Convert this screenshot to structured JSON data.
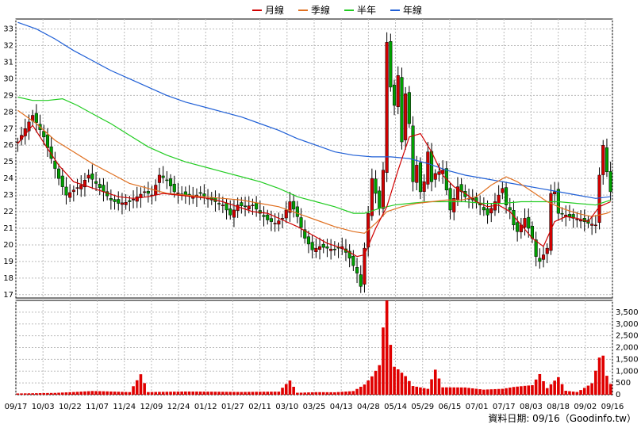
{
  "chart_data": {
    "type": "candlestick",
    "legend": [
      {
        "label": "月線",
        "color": "#d00000"
      },
      {
        "label": "季線",
        "color": "#e07020"
      },
      {
        "label": "半年",
        "color": "#22cc22"
      },
      {
        "label": "年線",
        "color": "#1f5fd6"
      }
    ],
    "price_axis": {
      "ticks": [
        17,
        18,
        19,
        20,
        21,
        22,
        23,
        24,
        25,
        26,
        27,
        28,
        29,
        30,
        31,
        32,
        33
      ],
      "ylim": [
        16.8,
        33.6
      ]
    },
    "volume_axis": {
      "ticks": [
        "0",
        "500",
        "1,000",
        "1,500",
        "2,000",
        "2,500",
        "3,000",
        "3,500"
      ],
      "ylim": [
        0,
        4000
      ]
    },
    "x_ticks": [
      "09/17",
      "10/03",
      "10/22",
      "11/07",
      "11/24",
      "12/09",
      "12/24",
      "01/12",
      "01/27",
      "02/11",
      "03/10",
      "03/25",
      "04/13",
      "04/28",
      "05/14",
      "05/29",
      "06/15",
      "07/01",
      "07/17",
      "08/03",
      "08/18",
      "09/02",
      "09/16"
    ],
    "close_path": [
      [
        0,
        26.2
      ],
      [
        4,
        27.8
      ],
      [
        7,
        26.5
      ],
      [
        9,
        25.2
      ],
      [
        11,
        24
      ],
      [
        13,
        23
      ],
      [
        15,
        23.3
      ],
      [
        17,
        23.6
      ],
      [
        19,
        24.2
      ],
      [
        21,
        23.7
      ],
      [
        23,
        23.2
      ],
      [
        25,
        22.7
      ],
      [
        27,
        22.5
      ],
      [
        30,
        22.6
      ],
      [
        32,
        22.9
      ],
      [
        34,
        23.2
      ],
      [
        36,
        23
      ],
      [
        38,
        24.2
      ],
      [
        40,
        23.9
      ],
      [
        42,
        23.2
      ],
      [
        45,
        23
      ],
      [
        47,
        22.9
      ],
      [
        49,
        23.1
      ],
      [
        51,
        22.8
      ],
      [
        53,
        22.6
      ],
      [
        55,
        22.4
      ],
      [
        57,
        21.8
      ],
      [
        59,
        22.4
      ],
      [
        61,
        22.3
      ],
      [
        63,
        22.4
      ],
      [
        65,
        21.9
      ],
      [
        67,
        21.5
      ],
      [
        69,
        21.3
      ],
      [
        71,
        21.6
      ],
      [
        73,
        22.6
      ],
      [
        75,
        21.7
      ],
      [
        77,
        20.4
      ],
      [
        79,
        19.7
      ],
      [
        81,
        19.9
      ],
      [
        83,
        19.8
      ],
      [
        85,
        19.7
      ],
      [
        87,
        19.9
      ],
      [
        89,
        19.2
      ],
      [
        91,
        18.3
      ],
      [
        92,
        17.5
      ],
      [
        93,
        19.8
      ],
      [
        95,
        24
      ],
      [
        97,
        22.2
      ],
      [
        98,
        24.5
      ],
      [
        99,
        32.2
      ],
      [
        100,
        29.5
      ],
      [
        101,
        28.4
      ],
      [
        102,
        30.2
      ],
      [
        103,
        26.2
      ],
      [
        104,
        29.1
      ],
      [
        105,
        27.3
      ],
      [
        106,
        23.8
      ],
      [
        107,
        24.8
      ],
      [
        108,
        23.2
      ],
      [
        109,
        23.8
      ],
      [
        110,
        25.6
      ],
      [
        111,
        23.8
      ],
      [
        112,
        24.3
      ],
      [
        114,
        24.5
      ],
      [
        116,
        22.1
      ],
      [
        118,
        23.5
      ],
      [
        120,
        22.9
      ],
      [
        122,
        22.7
      ],
      [
        124,
        22.4
      ],
      [
        126,
        21.8
      ],
      [
        128,
        22.6
      ],
      [
        130,
        23.4
      ],
      [
        131,
        22.4
      ],
      [
        132,
        22.1
      ],
      [
        133,
        21.2
      ],
      [
        134,
        20.8
      ],
      [
        136,
        21.6
      ],
      [
        138,
        20.4
      ],
      [
        139,
        19.3
      ],
      [
        140,
        19
      ],
      [
        141,
        19.4
      ],
      [
        142,
        19.8
      ],
      [
        143,
        23.1
      ],
      [
        144,
        23.2
      ],
      [
        145,
        21.9
      ],
      [
        147,
        21.8
      ],
      [
        149,
        21.6
      ],
      [
        151,
        21.5
      ],
      [
        153,
        21.3
      ],
      [
        155,
        21.2
      ],
      [
        156,
        24.2
      ],
      [
        157,
        26
      ],
      [
        158,
        24.4
      ],
      [
        159,
        23.2
      ]
    ],
    "ma_month": [
      [
        0,
        26.1
      ],
      [
        4,
        27.2
      ],
      [
        8,
        25.8
      ],
      [
        11,
        24.8
      ],
      [
        15,
        23.8
      ],
      [
        19,
        23.5
      ],
      [
        23,
        23.2
      ],
      [
        27,
        22.9
      ],
      [
        31,
        22.8
      ],
      [
        35,
        22.9
      ],
      [
        39,
        23.1
      ],
      [
        43,
        23
      ],
      [
        47,
        22.9
      ],
      [
        51,
        22.8
      ],
      [
        55,
        22.6
      ],
      [
        59,
        22.3
      ],
      [
        63,
        22
      ],
      [
        67,
        21.9
      ],
      [
        71,
        21.5
      ],
      [
        75,
        21.1
      ],
      [
        79,
        20.6
      ],
      [
        83,
        20.1
      ],
      [
        87,
        19.8
      ],
      [
        91,
        19.3
      ],
      [
        93,
        19.4
      ],
      [
        96,
        21
      ],
      [
        99,
        22.3
      ],
      [
        102,
        24.5
      ],
      [
        105,
        26.5
      ],
      [
        108,
        26.7
      ],
      [
        111,
        25.6
      ],
      [
        114,
        24.2
      ],
      [
        117,
        23.5
      ],
      [
        120,
        23.1
      ],
      [
        123,
        22.6
      ],
      [
        126,
        22.3
      ],
      [
        129,
        22.4
      ],
      [
        132,
        22
      ],
      [
        135,
        21.2
      ],
      [
        138,
        20.4
      ],
      [
        141,
        19.9
      ],
      [
        144,
        21.4
      ],
      [
        147,
        21.7
      ],
      [
        150,
        21.6
      ],
      [
        153,
        21.4
      ],
      [
        156,
        22.3
      ],
      [
        159,
        22.6
      ]
    ],
    "ma_quarter": [
      [
        0,
        28.1
      ],
      [
        5,
        27.3
      ],
      [
        10,
        26.3
      ],
      [
        15,
        25.6
      ],
      [
        20,
        24.9
      ],
      [
        25,
        24.3
      ],
      [
        30,
        23.7
      ],
      [
        35,
        23.4
      ],
      [
        40,
        23.1
      ],
      [
        45,
        23
      ],
      [
        50,
        22.9
      ],
      [
        55,
        22.8
      ],
      [
        60,
        22.7
      ],
      [
        65,
        22.5
      ],
      [
        70,
        22.3
      ],
      [
        75,
        21.9
      ],
      [
        80,
        21.5
      ],
      [
        85,
        21.1
      ],
      [
        90,
        20.8
      ],
      [
        93,
        20.7
      ],
      [
        96,
        21.3
      ],
      [
        99,
        22
      ],
      [
        103,
        22.3
      ],
      [
        107,
        22.5
      ],
      [
        111,
        22.6
      ],
      [
        115,
        22.7
      ],
      [
        119,
        22.7
      ],
      [
        123,
        22.9
      ],
      [
        127,
        23.6
      ],
      [
        131,
        24.1
      ],
      [
        134,
        23.8
      ],
      [
        138,
        23.2
      ],
      [
        142,
        22.6
      ],
      [
        146,
        22.2
      ],
      [
        150,
        21.9
      ],
      [
        154,
        21.7
      ],
      [
        158,
        21.9
      ],
      [
        159,
        22
      ]
    ],
    "ma_half": [
      [
        0,
        28.9
      ],
      [
        4,
        28.7
      ],
      [
        8,
        28.7
      ],
      [
        12,
        28.8
      ],
      [
        16,
        28.4
      ],
      [
        20,
        27.9
      ],
      [
        25,
        27.3
      ],
      [
        30,
        26.6
      ],
      [
        35,
        25.9
      ],
      [
        40,
        25.4
      ],
      [
        45,
        25
      ],
      [
        50,
        24.7
      ],
      [
        55,
        24.4
      ],
      [
        60,
        24.1
      ],
      [
        65,
        23.8
      ],
      [
        70,
        23.4
      ],
      [
        75,
        22.9
      ],
      [
        80,
        22.6
      ],
      [
        85,
        22.3
      ],
      [
        90,
        21.9
      ],
      [
        93,
        21.9
      ],
      [
        97,
        22.2
      ],
      [
        101,
        22.4
      ],
      [
        105,
        22.5
      ],
      [
        110,
        22.6
      ],
      [
        115,
        22.6
      ],
      [
        120,
        22.6
      ],
      [
        125,
        22.5
      ],
      [
        130,
        22.5
      ],
      [
        135,
        22.6
      ],
      [
        140,
        22.6
      ],
      [
        145,
        22.6
      ],
      [
        150,
        22.5
      ],
      [
        155,
        22.4
      ],
      [
        159,
        22.7
      ]
    ],
    "ma_year": [
      [
        0,
        33.4
      ],
      [
        5,
        33
      ],
      [
        10,
        32.4
      ],
      [
        15,
        31.7
      ],
      [
        20,
        31.1
      ],
      [
        25,
        30.5
      ],
      [
        30,
        30
      ],
      [
        35,
        29.5
      ],
      [
        40,
        29
      ],
      [
        45,
        28.6
      ],
      [
        50,
        28.3
      ],
      [
        55,
        28
      ],
      [
        60,
        27.7
      ],
      [
        65,
        27.3
      ],
      [
        70,
        26.9
      ],
      [
        75,
        26.4
      ],
      [
        80,
        26
      ],
      [
        85,
        25.6
      ],
      [
        90,
        25.4
      ],
      [
        95,
        25.3
      ],
      [
        100,
        25.3
      ],
      [
        105,
        25.2
      ],
      [
        110,
        24.9
      ],
      [
        115,
        24.5
      ],
      [
        120,
        24.2
      ],
      [
        125,
        24
      ],
      [
        130,
        23.8
      ],
      [
        135,
        23.6
      ],
      [
        140,
        23.4
      ],
      [
        145,
        23.2
      ],
      [
        150,
        23
      ],
      [
        155,
        22.8
      ],
      [
        159,
        22.9
      ]
    ],
    "volume_path": [
      [
        0,
        70
      ],
      [
        10,
        80
      ],
      [
        20,
        140
      ],
      [
        30,
        90
      ],
      [
        33,
        700
      ],
      [
        35,
        90
      ],
      [
        45,
        110
      ],
      [
        60,
        110
      ],
      [
        70,
        150
      ],
      [
        73,
        750
      ],
      [
        75,
        110
      ],
      [
        80,
        130
      ],
      [
        85,
        110
      ],
      [
        90,
        150
      ],
      [
        93,
        400
      ],
      [
        95,
        700
      ],
      [
        97,
        1100
      ],
      [
        99,
        3850
      ],
      [
        100,
        1800
      ],
      [
        101,
        1000
      ],
      [
        102,
        900
      ],
      [
        104,
        650
      ],
      [
        106,
        300
      ],
      [
        110,
        200
      ],
      [
        112,
        850
      ],
      [
        114,
        250
      ],
      [
        120,
        250
      ],
      [
        125,
        180
      ],
      [
        130,
        220
      ],
      [
        133,
        300
      ],
      [
        138,
        400
      ],
      [
        140,
        900
      ],
      [
        142,
        300
      ],
      [
        145,
        850
      ],
      [
        147,
        200
      ],
      [
        150,
        150
      ],
      [
        154,
        600
      ],
      [
        156,
        1850
      ],
      [
        157,
        1900
      ],
      [
        158,
        900
      ],
      [
        159,
        500
      ]
    ],
    "source_text": "資料日期: 09/16（Goodinfo.tw）"
  }
}
